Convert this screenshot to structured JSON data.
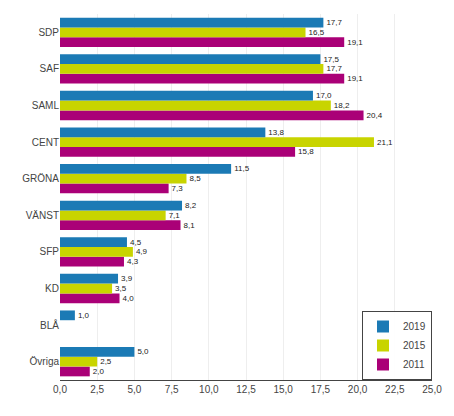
{
  "chart_data": {
    "type": "bar",
    "orientation": "horizontal",
    "categories": [
      "Övriga",
      "BLÅ",
      "KD",
      "SFP",
      "VÄNST",
      "GRÖNA",
      "CENT",
      "SAML",
      "SAF",
      "SDP"
    ],
    "series": [
      {
        "name": "2019",
        "color": "#1b7ab5",
        "values": [
          5.0,
          1.0,
          3.9,
          4.5,
          8.2,
          11.5,
          13.8,
          17.0,
          17.5,
          17.7
        ],
        "value_labels": [
          "5,0",
          "1,0",
          "3,9",
          "4,5",
          "8,2",
          "11,5",
          "13,8",
          "17,0",
          "17,5",
          "17,7"
        ]
      },
      {
        "name": "2015",
        "color": "#c8d400",
        "values": [
          2.5,
          0.0,
          3.5,
          4.9,
          7.1,
          8.5,
          21.1,
          18.2,
          17.7,
          16.5
        ],
        "value_labels": [
          "2,5",
          null,
          "3,5",
          "4,9",
          "7,1",
          "8,5",
          "21,1",
          "18,2",
          "17,7",
          "16,5"
        ]
      },
      {
        "name": "2011",
        "color": "#aa0077",
        "values": [
          2.0,
          0.0,
          4.0,
          4.3,
          8.1,
          7.3,
          15.8,
          20.4,
          19.1,
          19.1
        ],
        "value_labels": [
          "2,0",
          null,
          "4,0",
          "4,3",
          "8,1",
          "7,3",
          "15,8",
          "20,4",
          "19,1",
          "19,1"
        ]
      }
    ],
    "xlim": [
      0,
      25.0
    ],
    "xticks": [
      {
        "value": 0.0,
        "label": "0,0"
      },
      {
        "value": 2.5,
        "label": "2,5"
      },
      {
        "value": 5.0,
        "label": "5,0"
      },
      {
        "value": 7.5,
        "label": "7,5"
      },
      {
        "value": 10.0,
        "label": "10,0"
      },
      {
        "value": 12.5,
        "label": "12,5"
      },
      {
        "value": 15.0,
        "label": "15,0"
      },
      {
        "value": 17.5,
        "label": "17,5"
      },
      {
        "value": 20.0,
        "label": "20,0"
      },
      {
        "value": 22.5,
        "label": "22,5"
      },
      {
        "value": 25.0,
        "label": "25,0"
      }
    ],
    "data_labels": true,
    "grid": true,
    "legend": "lower right"
  }
}
